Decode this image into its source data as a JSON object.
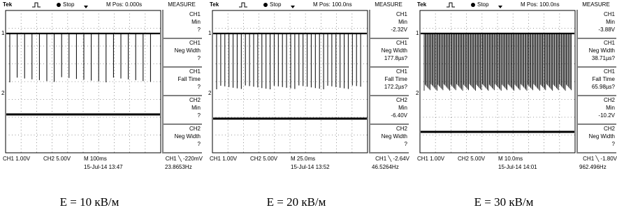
{
  "panels": [
    {
      "header": {
        "brand": "Tek",
        "status": "Stop",
        "position": "M Pos: 0.000s",
        "menu": "MEASURE"
      },
      "markers": [
        "1",
        "2"
      ],
      "measures": [
        {
          "channel": "CH1",
          "name": "Min",
          "value": "?"
        },
        {
          "channel": "CH1",
          "name": "Neg Width",
          "value": "?"
        },
        {
          "channel": "CH1",
          "name": "Fall Time",
          "value": "?"
        },
        {
          "channel": "CH2",
          "name": "Min",
          "value": "?"
        },
        {
          "channel": "CH2",
          "name": "Neg Width",
          "value": "?"
        }
      ],
      "footer": {
        "ch1": "CH1  1.00V",
        "ch2": "CH2  5.00V",
        "time": "M 100ms",
        "trigger": "CH1 ╲ -220mV",
        "date": "15-Jul-14 13:47",
        "freq": "23.8653Hz"
      },
      "caption": "E = 10 кВ/м"
    },
    {
      "header": {
        "brand": "Tek",
        "status": "Stop",
        "position": "M Pos: 100.0ns",
        "menu": "MEASURE"
      },
      "markers": [
        "1",
        "2"
      ],
      "measures": [
        {
          "channel": "CH1",
          "name": "Min",
          "value": "-2.32V"
        },
        {
          "channel": "CH1",
          "name": "Neg Width",
          "value": "177.8µs?"
        },
        {
          "channel": "CH1",
          "name": "Fall Time",
          "value": "172.2µs?"
        },
        {
          "channel": "CH2",
          "name": "Min",
          "value": "-6.40V"
        },
        {
          "channel": "CH2",
          "name": "Neg Width",
          "value": "?"
        }
      ],
      "footer": {
        "ch1": "CH1  1.00V",
        "ch2": "CH2  5.00V",
        "time": "M 25.0ms",
        "trigger": "CH1 ╲ -2.64V",
        "date": "15-Jul-14 13:52",
        "freq": "46.5264Hz"
      },
      "caption": "E = 20 кВ/м"
    },
    {
      "header": {
        "brand": "Tek",
        "status": "Stop",
        "position": "M Pos: 100.0ns",
        "menu": "MEASURE"
      },
      "markers": [
        "1",
        "2"
      ],
      "measures": [
        {
          "channel": "CH1",
          "name": "Min",
          "value": "-3.88V"
        },
        {
          "channel": "CH1",
          "name": "Neg Width",
          "value": "38.71µs?"
        },
        {
          "channel": "CH1",
          "name": "Fall Time",
          "value": "65.98µs?"
        },
        {
          "channel": "CH2",
          "name": "Min",
          "value": "-10.2V"
        },
        {
          "channel": "CH2",
          "name": "Neg Width",
          "value": "?"
        }
      ],
      "footer": {
        "ch1": "CH1  1.00V",
        "ch2": "CH2  5.00V",
        "time": "M 10.0ms",
        "trigger": "CH1 ╲ -1.80V",
        "date": "15-Jul-14 14:01",
        "freq": "962.496Hz"
      },
      "caption": "E = 30 кВ/м"
    }
  ]
}
